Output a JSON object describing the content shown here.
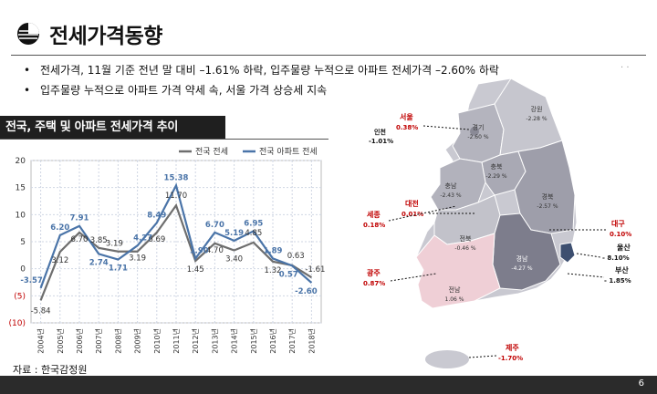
{
  "title": "전세가격동향",
  "bullets": [
    "전세가격, 11월 기준 전년 말 대비 –1.61% 하락, 입주물량 누적으로 아파트 전세가격 –2.60%  하락",
    "입주물량 누적으로 아파트 가격 약세 속, 서울 가격 상승세 지속"
  ],
  "side_dots": ". .",
  "section_title": "전국, 주택 및 아파트 전세가격 추이",
  "source": "자료 : 한국감정원",
  "page_number": "6",
  "colors": {
    "housing": "#6e6e6e",
    "apartment": "#4a74a8",
    "emphasis": "#c00000",
    "plot_bg": "#ffffff"
  },
  "chart_data": {
    "type": "line",
    "categories": [
      "2004년",
      "2005년",
      "2006년",
      "2007년",
      "2008년",
      "2009년",
      "2010년",
      "2011년",
      "2012년",
      "2013년",
      "2014년",
      "2015년",
      "2016년",
      "2017년",
      "2018년"
    ],
    "series": [
      {
        "name": "전국 전세",
        "values": [
          -5.84,
          3.12,
          6.7,
          3.85,
          3.19,
          3.19,
          6.69,
          11.7,
          1.45,
          4.7,
          3.4,
          4.85,
          1.32,
          0.63,
          -1.61
        ]
      },
      {
        "name": "전국 아파트 전세",
        "values": [
          -3.57,
          6.2,
          7.91,
          2.74,
          1.71,
          4.27,
          8.49,
          15.38,
          1.9,
          6.7,
          5.19,
          6.95,
          1.89,
          0.57,
          -2.6
        ]
      }
    ],
    "housing_labels": [
      "-5.84",
      "3.12",
      "6.70",
      "3.85",
      "3.19",
      "3.19",
      "6.69",
      "11.70",
      "1.45",
      "4.70",
      "3.40",
      "4.85",
      "1.32",
      "0.63",
      "-1.61"
    ],
    "apartment_labels": [
      "-3.57",
      "6.20",
      "7.91",
      "2.74",
      "1.71",
      "4.27",
      "8.49",
      "15.38",
      "1.90",
      "6.70",
      "5.19",
      "6.95",
      "1.89",
      "0.57",
      "-2.60"
    ],
    "y_ticks": [
      "20",
      "15",
      "10",
      "5",
      "0",
      "(5)",
      "(10)"
    ],
    "ylim": [
      -10,
      20
    ],
    "legend_position": "top-right",
    "grid": true
  },
  "map": {
    "regions": [
      {
        "name": "서울",
        "value": "0.38%",
        "highlight": true
      },
      {
        "name": "인천",
        "value": "-1.01%",
        "highlight": false
      },
      {
        "name": "경기",
        "value": "-2.60 %",
        "highlight": false
      },
      {
        "name": "강원",
        "value": "-2.28 %",
        "highlight": false
      },
      {
        "name": "충북",
        "value": "-2.29 %",
        "highlight": false
      },
      {
        "name": "충남",
        "value": "-2.43 %",
        "highlight": false
      },
      {
        "name": "대전",
        "value": "0.01%",
        "highlight": true
      },
      {
        "name": "세종",
        "value": "0.18%",
        "highlight": true
      },
      {
        "name": "경북",
        "value": "-2.57 %",
        "highlight": false
      },
      {
        "name": "대구",
        "value": "0.10%",
        "highlight": true
      },
      {
        "name": "전북",
        "value": "-0.46 %",
        "highlight": false
      },
      {
        "name": "울산",
        "value": "- 8.10%",
        "highlight": false
      },
      {
        "name": "경남",
        "value": "-4.27 %",
        "highlight": false
      },
      {
        "name": "부산",
        "value": "- 1.85%",
        "highlight": false
      },
      {
        "name": "광주",
        "value": "0.87%",
        "highlight": true
      },
      {
        "name": "전남",
        "value": "1.06 %",
        "highlight": false
      },
      {
        "name": "제주",
        "value": "-1.70%",
        "highlight": true
      }
    ]
  }
}
